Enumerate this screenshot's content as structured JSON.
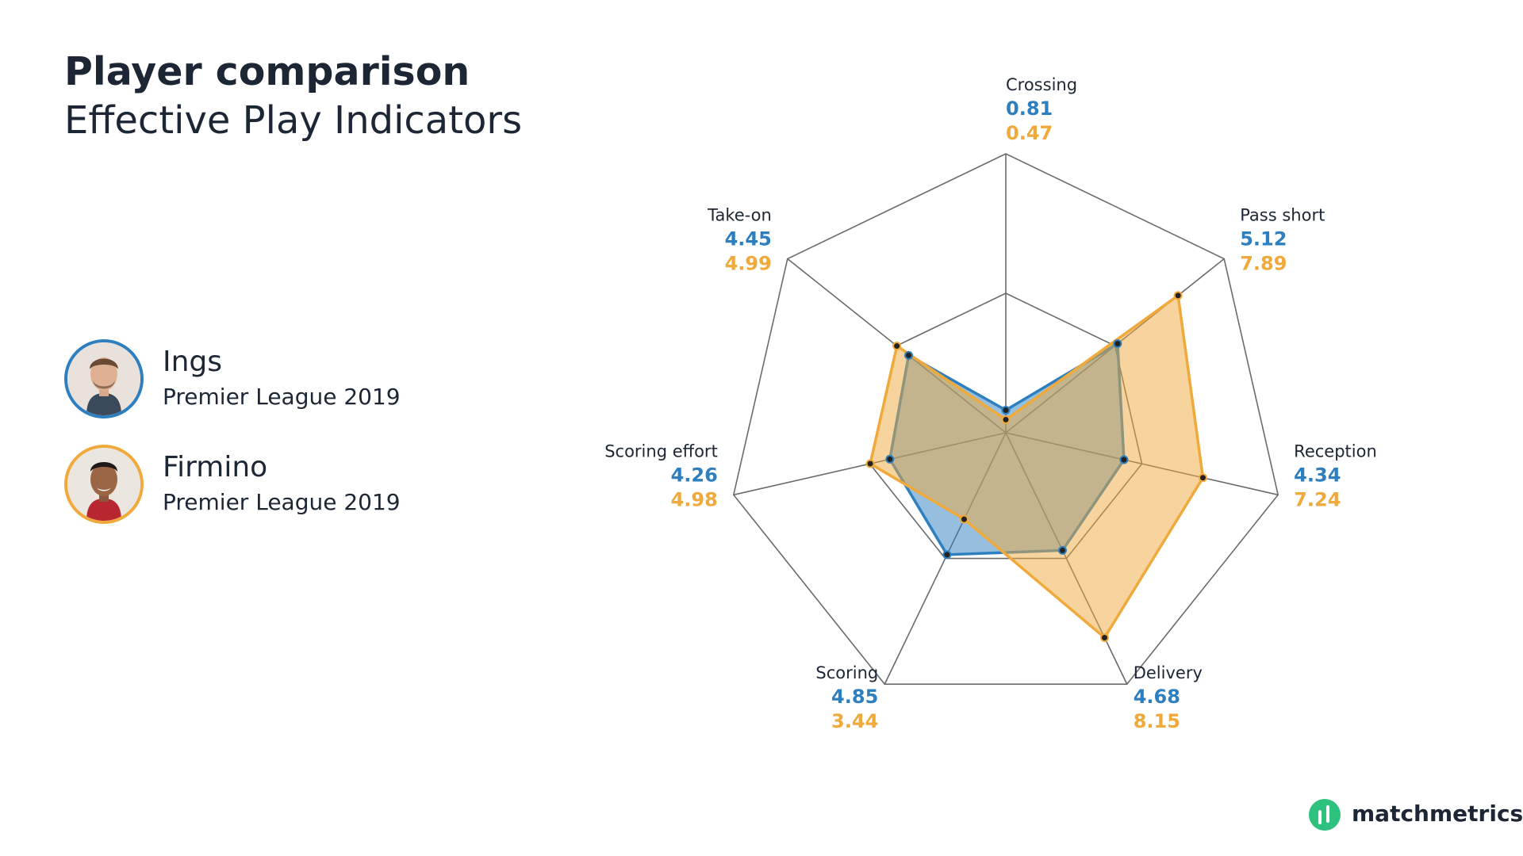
{
  "header": {
    "title": "Player comparison",
    "subtitle": "Effective Play Indicators"
  },
  "players": [
    {
      "name": "Ings",
      "competition": "Premier League 2019",
      "color": "#2e7fbf"
    },
    {
      "name": "Firmino",
      "competition": "Premier League 2019",
      "color": "#f0a93b"
    }
  ],
  "chart_data": {
    "type": "radar",
    "axes": [
      "Crossing",
      "Pass short",
      "Reception",
      "Delivery",
      "Scoring",
      "Scoring effort",
      "Take-on"
    ],
    "series": [
      {
        "name": "Ings",
        "color": "#2e7fbf",
        "values": [
          0.81,
          5.12,
          4.34,
          4.68,
          4.85,
          4.26,
          4.45
        ]
      },
      {
        "name": "Firmino",
        "color": "#f0a93b",
        "values": [
          0.47,
          7.89,
          7.24,
          8.15,
          3.44,
          4.98,
          4.99
        ]
      }
    ],
    "range": [
      0,
      10
    ],
    "grid_levels": 2
  },
  "brand": {
    "name": "matchmetrics",
    "color": "#2ec27e"
  }
}
